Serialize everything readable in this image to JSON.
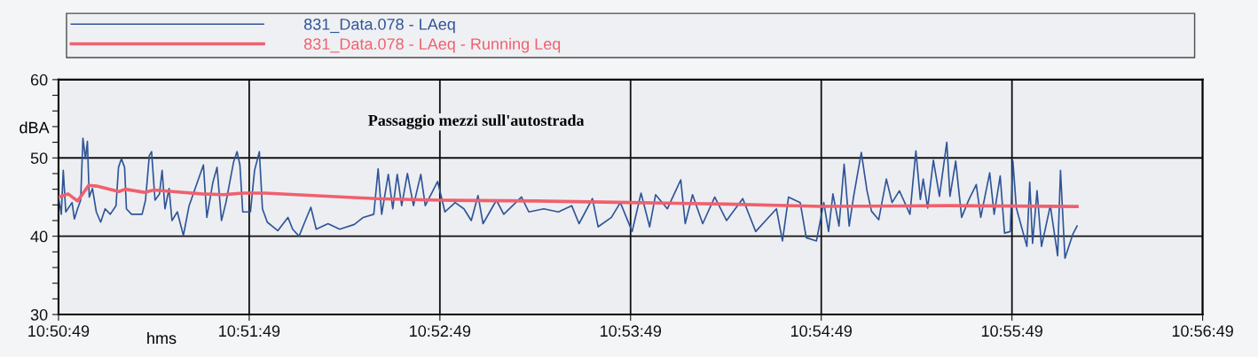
{
  "chart_data": {
    "type": "line",
    "xlabel": "hms",
    "ylabel": "dBA",
    "annotations": [
      "Passaggio mezzi sull'autostrada"
    ],
    "series": [
      {
        "name": "831_Data.078 - LAeq",
        "color": "#2f5597",
        "x": [
          10.84695,
          10.84719,
          10.84736,
          10.84758,
          10.84813,
          10.84833,
          10.84861,
          10.84888,
          10.84908,
          10.8493,
          10.84947,
          10.84963,
          10.84991,
          10.85025,
          10.85063,
          10.85102,
          10.85147,
          10.85197,
          10.85219,
          10.85244,
          10.85272,
          10.85288,
          10.85333,
          10.85425,
          10.85455,
          10.85488,
          10.85508,
          10.85538,
          10.85577,
          10.856,
          10.85625,
          10.85661,
          10.85686,
          10.85733,
          10.85786,
          10.85836,
          10.85908,
          10.85961,
          10.85991,
          10.86044,
          10.8608,
          10.86119,
          10.86158,
          10.86225,
          10.86255,
          10.8628,
          10.86305,
          10.86372,
          10.86408,
          10.8645,
          10.86477,
          10.86519,
          10.86611,
          10.867,
          10.86741,
          10.86797,
          10.86841,
          10.869,
          10.86947,
          10.8705,
          10.87152,
          10.8728,
          10.87358,
          10.8745,
          10.87488,
          10.87519,
          10.87577,
          10.87616,
          10.87655,
          10.87694,
          10.87744,
          10.87797,
          10.87861,
          10.879,
          10.88008,
          10.88072,
          10.88161,
          10.88238,
          10.88302,
          10.88361,
          10.88405,
          10.88522,
          10.88586,
          10.88741,
          10.88805,
          10.88936,
          10.89063,
          10.8918,
          10.89244,
          10.89361,
          10.89411,
          10.89527,
          10.89605,
          10.89708,
          10.89786,
          10.89861,
          10.89913,
          10.90016,
          10.90133,
          10.90172,
          10.90236,
          10.90325,
          10.9043,
          10.90533,
          10.90675,
          10.90788,
          10.90969,
          10.91022,
          10.91075,
          10.91177,
          10.9123,
          10.91319,
          10.91383,
          10.91425,
          10.91463,
          10.91516,
          10.91561,
          10.91605,
          10.91644,
          10.91711,
          10.91761,
          10.918,
          10.91863,
          10.9193,
          10.9198,
          10.92044,
          10.92136,
          10.92188,
          10.92227,
          10.92252,
          10.92291,
          10.92341,
          10.92394,
          10.92458,
          10.92486,
          10.92536,
          10.92588,
          10.92652,
          10.92716,
          10.92755,
          10.92833,
          10.92872,
          10.92925,
          10.92963,
          10.93013,
          10.93036,
          10.93066,
          10.93158,
          10.93183,
          10.93208,
          10.93247,
          10.93286,
          10.93363,
          10.93427,
          10.93452,
          10.93491,
          10.93558,
          10.93597
        ],
        "values": [
          45.0,
          42.8,
          48.4,
          43.1,
          44.3,
          42.2,
          43.5,
          44.6,
          52.5,
          49.9,
          52.1,
          45.0,
          46.1,
          43.1,
          41.8,
          43.5,
          42.8,
          43.9,
          48.8,
          49.9,
          48.8,
          43.5,
          42.8,
          42.8,
          44.6,
          50.3,
          50.8,
          44.6,
          45.4,
          48.4,
          43.5,
          46.1,
          42.0,
          43.1,
          40.1,
          43.9,
          46.9,
          49.1,
          42.4,
          46.9,
          48.8,
          42.0,
          44.3,
          49.5,
          50.8,
          49.1,
          43.1,
          43.1,
          48.4,
          50.8,
          43.5,
          41.8,
          40.7,
          42.4,
          40.9,
          40.0,
          41.6,
          43.7,
          40.9,
          41.6,
          40.9,
          41.5,
          42.4,
          42.8,
          48.6,
          42.8,
          47.9,
          43.5,
          47.9,
          43.9,
          48.0,
          43.9,
          47.9,
          43.9,
          47.0,
          43.1,
          44.3,
          43.5,
          42.0,
          45.2,
          41.6,
          44.6,
          42.8,
          45.0,
          43.1,
          43.5,
          43.1,
          43.9,
          41.6,
          44.8,
          41.2,
          42.4,
          44.3,
          40.6,
          45.5,
          41.2,
          45.3,
          43.5,
          47.2,
          41.6,
          45.3,
          41.6,
          45.0,
          42.0,
          44.8,
          40.6,
          43.5,
          39.4,
          45.0,
          44.3,
          39.8,
          39.4,
          44.3,
          40.6,
          45.4,
          41.3,
          49.2,
          41.3,
          45.1,
          50.7,
          45.8,
          43.2,
          42.1,
          47.3,
          44.3,
          45.8,
          42.8,
          50.9,
          44.7,
          47.3,
          43.6,
          49.7,
          45.1,
          52.0,
          45.1,
          49.6,
          42.4,
          44.7,
          46.6,
          42.4,
          48.1,
          42.8,
          47.7,
          40.4,
          40.6,
          49.6,
          43.6,
          38.7,
          46.9,
          39.1,
          45.8,
          38.7,
          43.9,
          37.5,
          48.4,
          37.2,
          40.2,
          41.3
        ]
      },
      {
        "name": "831_Data.078 - LAeq - Running Leq",
        "color": "#f0606e",
        "x": [
          10.84695,
          10.84778,
          10.84861,
          10.84958,
          10.85028,
          10.85222,
          10.85278,
          10.85444,
          10.85528,
          10.85694,
          10.85944,
          10.86139,
          10.86305,
          10.865,
          10.87194,
          10.87472,
          10.88027,
          10.88861,
          10.89694,
          10.90527,
          10.91361,
          10.92472,
          10.93597
        ],
        "values": [
          45.0,
          45.4,
          44.5,
          46.5,
          46.4,
          45.7,
          46.0,
          45.6,
          45.9,
          45.7,
          45.4,
          45.3,
          45.5,
          45.5,
          45.0,
          44.8,
          44.6,
          44.5,
          44.3,
          44.1,
          43.8,
          43.9,
          43.8
        ]
      }
    ],
    "xlim": [
      10.846944,
      10.946944
    ],
    "xticks": [
      {
        "value": 10.846944,
        "label": "10:50:49"
      },
      {
        "value": 10.863611,
        "label": "10:51:49"
      },
      {
        "value": 10.880278,
        "label": "10:52:49"
      },
      {
        "value": 10.896944,
        "label": "10:53:49"
      },
      {
        "value": 10.913611,
        "label": "10:54:49"
      },
      {
        "value": 10.930278,
        "label": "10:55:49"
      },
      {
        "value": 10.946944,
        "label": "10:56:49"
      }
    ],
    "ylim": [
      30,
      60
    ],
    "yticks": [
      30,
      {
        "value": 32,
        "label": null
      },
      {
        "value": 34,
        "label": null
      },
      {
        "value": 36,
        "label": null
      },
      {
        "value": 38,
        "label": null
      },
      40,
      {
        "value": 42,
        "label": null
      },
      {
        "value": 44,
        "label": null
      },
      {
        "value": 46,
        "label": null
      },
      {
        "value": 48,
        "label": null
      },
      50,
      {
        "value": 52,
        "label": null
      },
      {
        "value": 54,
        "label": null
      },
      {
        "value": 56,
        "label": null
      },
      {
        "value": 58,
        "label": null
      },
      60
    ],
    "grid": true,
    "legend": "top left"
  }
}
